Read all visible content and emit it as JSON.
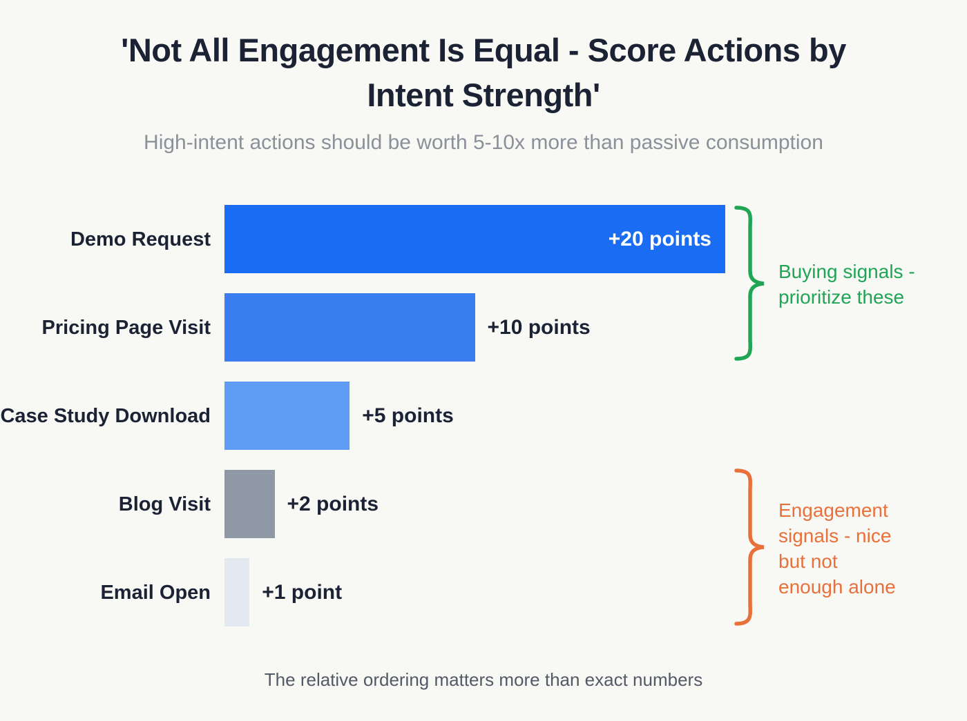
{
  "chart_data": {
    "type": "bar",
    "orientation": "horizontal",
    "title": "'Not All Engagement Is Equal - Score Actions by Intent Strength'",
    "subtitle": "High-intent actions should be worth 5-10x more than passive consumption",
    "footer": "The relative ordering matters more than exact numbers",
    "categories": [
      "Demo Request",
      "Pricing Page Visit",
      "Case Study Download",
      "Blog Visit",
      "Email Open"
    ],
    "values": [
      20,
      10,
      5,
      2,
      1
    ],
    "value_labels": [
      "+20 points",
      "+10 points",
      "+5 points",
      "+2 points",
      "+1 point"
    ],
    "bar_colors": [
      "#1a6df2",
      "#3b7ef2",
      "#5f9cf6",
      "#8f98a5",
      "#e3e9f1"
    ],
    "xmax": 20,
    "xlabel": "",
    "ylabel": "",
    "grid": false,
    "legend": false,
    "annotations": [
      {
        "text": "Buying signals -\nprioritize these",
        "color": "#1fa553",
        "spans_bars": [
          "Demo Request",
          "Pricing Page Visit"
        ]
      },
      {
        "text": "Engagement\nsignals - nice\nbut not\nenough alone",
        "color": "#e8703a",
        "spans_bars": [
          "Blog Visit",
          "Email Open"
        ]
      }
    ]
  }
}
